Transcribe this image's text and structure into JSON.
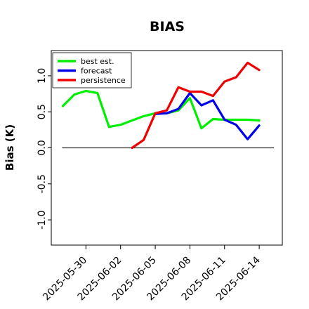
{
  "chart_data": {
    "type": "line",
    "title": "BIAS",
    "xlabel": "",
    "ylabel": "Bias (K)",
    "ylim": [
      -1.35,
      1.35
    ],
    "y_ticks": [
      -1.0,
      -0.5,
      0.0,
      0.5,
      1.0
    ],
    "y_tick_labels": [
      "-1.0",
      "-0.5",
      "0.0",
      "0.5",
      "1.0"
    ],
    "x_tick_labels": [
      "2025-05-30",
      "2025-06-02",
      "2025-06-05",
      "2025-06-08",
      "2025-06-11",
      "2025-06-14"
    ],
    "x_tick_dates": [
      "2025-05-30",
      "2025-06-02",
      "2025-06-05",
      "2025-06-08",
      "2025-06-11",
      "2025-06-14"
    ],
    "highlighted_tick": "2025-06-05",
    "highlight_color": "#228b22",
    "xlim": [
      "2025-05-27",
      "2025-06-16"
    ],
    "zero_line": true,
    "grid": false,
    "legend_position": "top-left",
    "series": [
      {
        "name": "best est.",
        "color": "#00ee00",
        "x": [
          "2025-05-28",
          "2025-05-29",
          "2025-05-30",
          "2025-05-31",
          "2025-06-01",
          "2025-06-02",
          "2025-06-03",
          "2025-06-04",
          "2025-06-05",
          "2025-06-06",
          "2025-06-07",
          "2025-06-08",
          "2025-06-09",
          "2025-06-10",
          "2025-06-11",
          "2025-06-12",
          "2025-06-13",
          "2025-06-14"
        ],
        "values": [
          0.58,
          0.74,
          0.79,
          0.76,
          0.29,
          0.32,
          0.38,
          0.44,
          0.48,
          0.48,
          0.52,
          0.69,
          0.27,
          0.4,
          0.39,
          0.39,
          0.39,
          0.38
        ]
      },
      {
        "name": "forecast",
        "color": "#0000ee",
        "x": [
          "2025-06-05",
          "2025-06-06",
          "2025-06-07",
          "2025-06-08",
          "2025-06-09",
          "2025-06-10",
          "2025-06-11",
          "2025-06-12",
          "2025-06-13",
          "2025-06-14"
        ],
        "values": [
          0.47,
          0.48,
          0.54,
          0.76,
          0.59,
          0.66,
          0.39,
          0.32,
          0.12,
          0.31
        ]
      },
      {
        "name": "persistence",
        "color": "#ee0000",
        "x": [
          "2025-06-03",
          "2025-06-04",
          "2025-06-05",
          "2025-06-06",
          "2025-06-07",
          "2025-06-08",
          "2025-06-09",
          "2025-06-10",
          "2025-06-11",
          "2025-06-12",
          "2025-06-13",
          "2025-06-14"
        ],
        "values": [
          0.0,
          0.11,
          0.48,
          0.52,
          0.84,
          0.78,
          0.78,
          0.72,
          0.92,
          0.98,
          1.18,
          1.08
        ]
      }
    ]
  }
}
